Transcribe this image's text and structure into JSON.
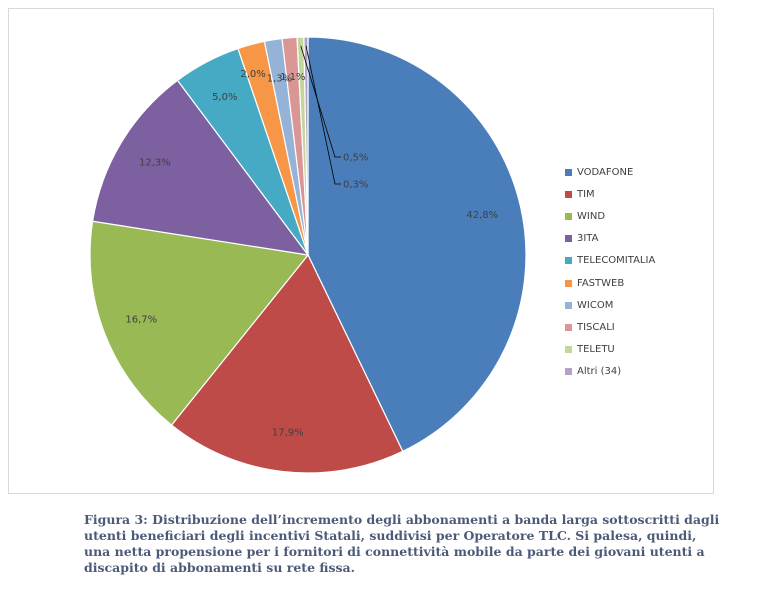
{
  "chart_data": {
    "type": "pie",
    "title": "",
    "legend_position": "right",
    "slices": [
      {
        "name": "VODAFONE",
        "value": 42.8,
        "label": "42,8%",
        "color": "#4a7ebb"
      },
      {
        "name": "TIM",
        "value": 17.9,
        "label": "17,9%",
        "color": "#be4b48"
      },
      {
        "name": "WIND",
        "value": 16.7,
        "label": "16,7%",
        "color": "#98b954"
      },
      {
        "name": "3ITA",
        "value": 12.3,
        "label": "12,3%",
        "color": "#7d60a0"
      },
      {
        "name": "TELECOMITALIA",
        "value": 5.0,
        "label": "5,0%",
        "color": "#46aac5"
      },
      {
        "name": "FASTWEB",
        "value": 2.0,
        "label": "2,0%",
        "color": "#f79646"
      },
      {
        "name": "WICOM",
        "value": 1.3,
        "label": "1,3%",
        "color": "#95b3d7"
      },
      {
        "name": "TISCALI",
        "value": 1.1,
        "label": "1,1%",
        "color": "#d99694"
      },
      {
        "name": "TELETU",
        "value": 0.5,
        "label": "0,5%",
        "color": "#c3d69b"
      },
      {
        "name": "Altri (34)",
        "value": 0.3,
        "label": "0,3%",
        "color": "#b3a2c7"
      }
    ]
  },
  "caption": "Figura 3: Distribuzione dell’incremento degli abbonamenti a banda larga sottoscritti dagli utenti beneficiari degli incentivi Statali, suddivisi per Operatore TLC. Si palesa, quindi, una netta propensione per i fornitori di connettività mobile da parte dei giovani utenti a discapito di abbonamenti su rete fissa."
}
